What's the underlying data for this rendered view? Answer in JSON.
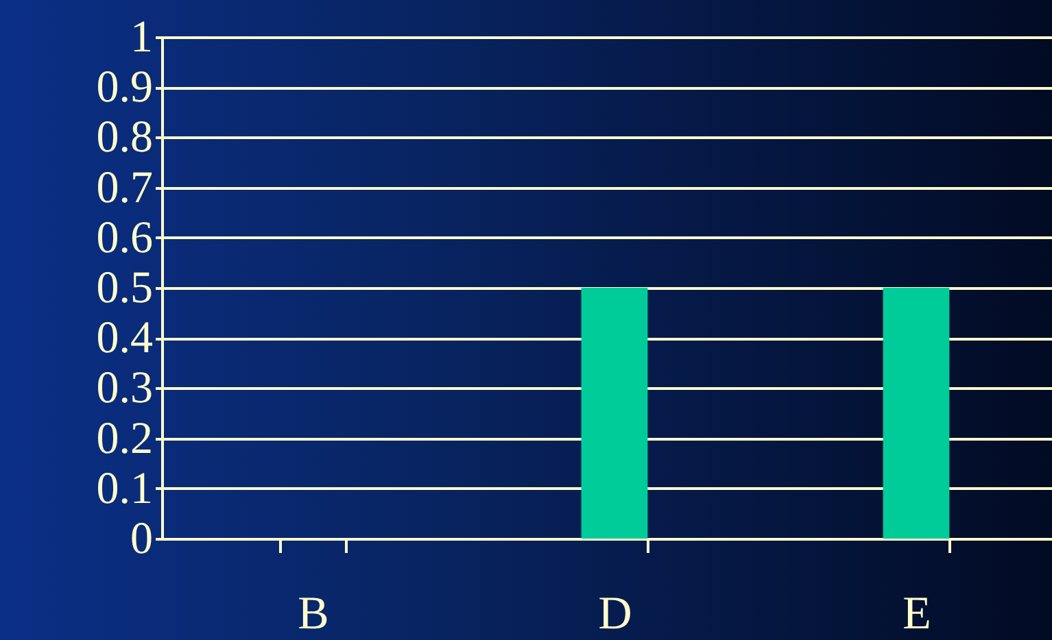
{
  "chart_data": {
    "type": "bar",
    "categories": [
      "B",
      "D",
      "E"
    ],
    "values": [
      0,
      0.5,
      0.5
    ],
    "color": "#00cc99",
    "ylim": [
      0,
      1
    ],
    "yticks": [
      0,
      0.1,
      0.2,
      0.3,
      0.4,
      0.5,
      0.6,
      0.7,
      0.8,
      0.9,
      1
    ],
    "grid": "y"
  }
}
